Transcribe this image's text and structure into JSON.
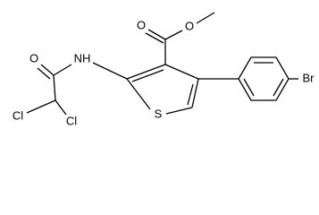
{
  "atoms": [
    {
      "label": "O"
    },
    {
      "label": "O"
    },
    {
      "label": "NH"
    },
    {
      "label": "O"
    },
    {
      "label": "Cl"
    },
    {
      "label": "Cl"
    },
    {
      "label": "S"
    },
    {
      "label": "Br"
    }
  ]
}
